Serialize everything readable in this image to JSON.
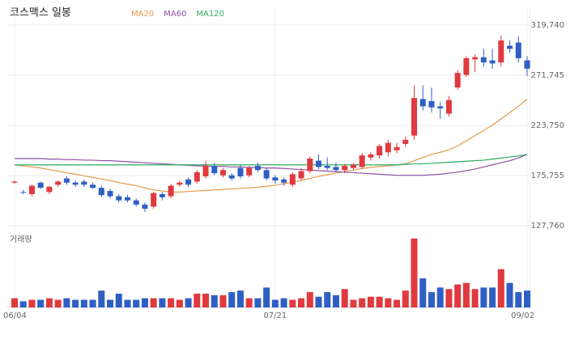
{
  "chart_data": {
    "type": "candlestick",
    "title": "코스맥스 일봉",
    "volume_label": "거래량",
    "categories": [
      "06/04",
      null,
      null,
      null,
      null,
      null,
      null,
      null,
      null,
      null,
      null,
      null,
      null,
      null,
      null,
      null,
      null,
      null,
      null,
      null,
      null,
      null,
      null,
      null,
      null,
      null,
      null,
      null,
      null,
      null,
      "07/21",
      null,
      null,
      null,
      null,
      null,
      null,
      null,
      null,
      null,
      null,
      null,
      null,
      null,
      null,
      null,
      null,
      null,
      null,
      null,
      null,
      null,
      null,
      null,
      null,
      null,
      null,
      null,
      null,
      "09/02"
    ],
    "open": [
      169,
      160,
      158,
      169,
      160,
      167,
      173,
      169,
      170,
      167,
      164,
      161,
      156,
      155,
      152,
      148,
      146,
      158,
      156,
      167,
      172,
      170,
      175,
      185,
      176,
      176,
      183,
      176,
      185,
      181,
      174,
      172,
      167,
      173,
      180,
      190,
      185,
      184,
      181,
      183,
      184,
      193,
      195,
      198,
      200,
      206,
      214,
      249,
      247,
      242,
      235,
      260,
      272,
      287,
      289,
      286,
      284,
      300,
      303,
      286
    ],
    "high": [
      171,
      162,
      167,
      170,
      166,
      171,
      175,
      171,
      172,
      169,
      166,
      163,
      158,
      157,
      154,
      150,
      160,
      160,
      168,
      171,
      174,
      181,
      190,
      188,
      183,
      178,
      186,
      185,
      188,
      183,
      176,
      174,
      179,
      183,
      194,
      196,
      193,
      188,
      187,
      188,
      197,
      198,
      206,
      210,
      207,
      213,
      262,
      262,
      260,
      246,
      252,
      277,
      290,
      292,
      297,
      297,
      310,
      305,
      309,
      290
    ],
    "low": [
      168,
      158,
      156,
      163,
      158,
      165,
      167,
      165,
      165,
      163,
      155,
      154,
      150,
      150,
      146,
      141,
      144,
      152,
      154,
      165,
      165,
      168,
      173,
      176,
      174,
      171,
      173,
      174,
      179,
      171,
      168,
      166,
      165,
      171,
      178,
      182,
      181,
      179,
      178,
      181,
      182,
      190,
      192,
      194,
      197,
      203,
      210,
      238,
      236,
      230,
      232,
      258,
      270,
      275,
      280,
      278,
      280,
      293,
      284,
      271
    ],
    "close": [
      170,
      159.5,
      166,
      164,
      165,
      170,
      169,
      167,
      167,
      164,
      157,
      156,
      152,
      152,
      148,
      144,
      159,
      155,
      166,
      169,
      167,
      179,
      185,
      178,
      181,
      173,
      175,
      183,
      181,
      173,
      171,
      169,
      177,
      180,
      192,
      184,
      183,
      181,
      185,
      186,
      195,
      196,
      204,
      207,
      203,
      210,
      250,
      242,
      241,
      240,
      248,
      274,
      288,
      289,
      284,
      283,
      305,
      297,
      288,
      278
    ],
    "up_color": "#e0393e",
    "down_color": "#2f5fc4",
    "ylim": [
      123100,
      336000
    ],
    "yticks": [
      {
        "value": 319740,
        "label": "319,740"
      },
      {
        "value": 271745,
        "label": "271,745"
      },
      {
        "value": 223750,
        "label": "223,750"
      },
      {
        "value": 175755,
        "label": "175,755"
      },
      {
        "value": 127760,
        "label": "127,760"
      }
    ],
    "price_unit": 1000,
    "series": [
      {
        "name": "MA20",
        "color": "#e39a4c",
        "values": [
          186,
          185,
          184,
          183,
          181.5,
          180,
          178.5,
          177,
          175.5,
          174,
          172.5,
          171,
          169,
          167.5,
          166,
          164,
          162,
          161,
          160,
          160,
          160.5,
          161,
          161.5,
          162,
          162.5,
          163,
          163.5,
          164,
          164.5,
          165.5,
          166.5,
          168,
          169.5,
          171,
          173,
          175,
          176.5,
          178,
          179.5,
          181,
          182.5,
          183.5,
          184.5,
          185,
          186,
          187,
          190,
          193,
          196,
          198,
          200.5,
          204,
          209,
          214,
          219,
          224,
          230,
          236,
          242,
          249
        ]
      },
      {
        "name": "MA60",
        "color": "#8e4fa8",
        "values": [
          192,
          192,
          192,
          192,
          191.5,
          191.5,
          191,
          191,
          190.5,
          190.5,
          190,
          190,
          189.5,
          189,
          188.5,
          188,
          187.5,
          187,
          186.5,
          186,
          185.5,
          185,
          185,
          184.5,
          184.5,
          184,
          184,
          183.5,
          183.5,
          183,
          183,
          182.5,
          182,
          181.5,
          181,
          180.5,
          180,
          179.5,
          179,
          178.5,
          178,
          177.5,
          177,
          176.5,
          176,
          176,
          176,
          176,
          176.5,
          177,
          178,
          179,
          180.5,
          182,
          184,
          186,
          188,
          190,
          192.5,
          196
        ]
      },
      {
        "name": "MA120",
        "color": "#2eab5f",
        "values": [
          186,
          186,
          186,
          186,
          186,
          186,
          186,
          186,
          186,
          186,
          186,
          186,
          186,
          186,
          186,
          186,
          186,
          186,
          186,
          186,
          186,
          186,
          186,
          186,
          186,
          186,
          186,
          186,
          186,
          186,
          186,
          186,
          186,
          186,
          186,
          186,
          186,
          186,
          186,
          186,
          186,
          186,
          186,
          186,
          186,
          186.5,
          187,
          187,
          187.5,
          188,
          188.5,
          189,
          189.5,
          190,
          190.5,
          191.5,
          192.5,
          193.5,
          194.5,
          196
        ]
      }
    ],
    "volume": [
      12,
      8,
      10,
      10,
      12,
      10,
      12,
      10,
      10,
      10,
      22,
      10,
      18,
      10,
      10,
      12,
      12,
      12,
      12,
      10,
      12,
      18,
      18,
      16,
      16,
      20,
      22,
      12,
      12,
      26,
      10,
      12,
      10,
      12,
      20,
      14,
      20,
      16,
      24,
      10,
      12,
      14,
      14,
      12,
      10,
      22,
      90,
      38,
      20,
      26,
      24,
      30,
      32,
      24,
      26,
      26,
      50,
      32,
      20,
      22
    ],
    "vlim": [
      0,
      95
    ]
  }
}
